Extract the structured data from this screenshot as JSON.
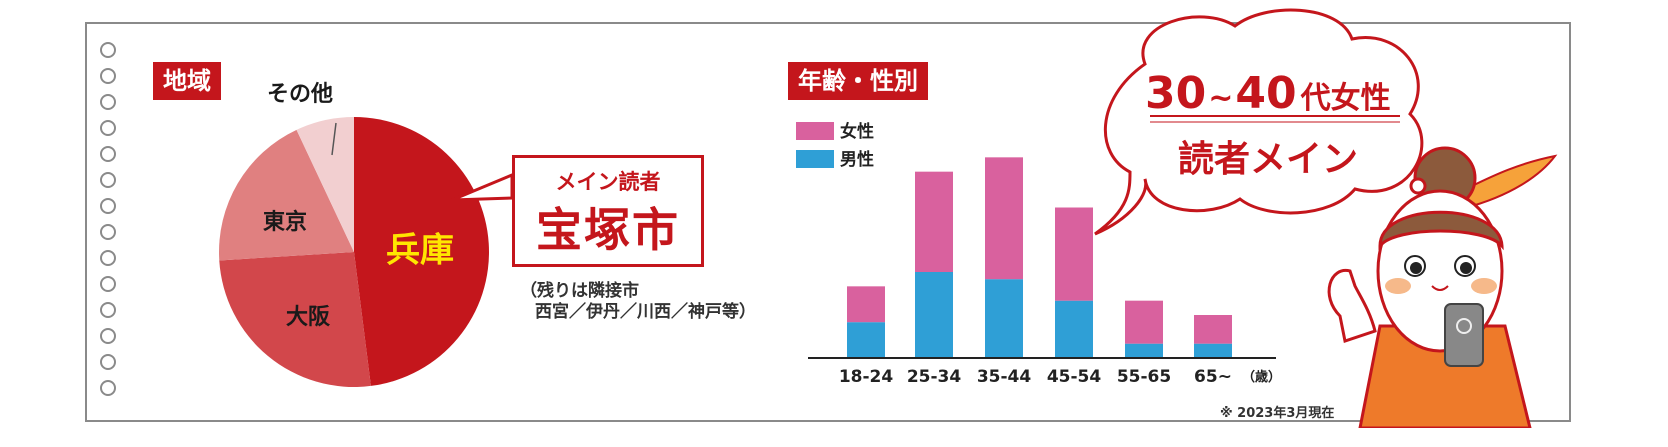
{
  "region": {
    "tag": "地域",
    "callout_sub": "メイン読者",
    "callout_main": "宝塚市",
    "note_line1": "（残りは隣接市",
    "note_line2": "西宮／伊丹／川西／神戸等）"
  },
  "age_gender": {
    "tag": "年齢・性別",
    "axis_unit": "（歳）",
    "footnote": "※ 2023年3月現在"
  },
  "bubble": {
    "line1_num": "30",
    "line1_tilde": "~",
    "line1_num2": "40",
    "line1_rest": "代女性",
    "line2": "読者メイン"
  },
  "chart_data": [
    {
      "type": "pie",
      "categories": [
        "兵庫",
        "大阪",
        "東京",
        "その他"
      ],
      "values": [
        48,
        26,
        19,
        7
      ],
      "colors": [
        "#c4161c",
        "#d2474b",
        "#e08080",
        "#f2cfd0"
      ],
      "label_colors": [
        "#ffe600",
        "#1a1a1a",
        "#1a1a1a",
        "#1a1a1a"
      ]
    },
    {
      "type": "bar",
      "stacked": true,
      "categories": [
        "18-24",
        "25-34",
        "35-44",
        "45-54",
        "55-65",
        "65~"
      ],
      "series": [
        {
          "name": "男性",
          "color": "#2f9fd6",
          "values": [
            10,
            24,
            22,
            16,
            4,
            4
          ]
        },
        {
          "name": "女性",
          "color": "#d9619e",
          "values": [
            10,
            28,
            34,
            26,
            12,
            8
          ]
        }
      ],
      "ylim": [
        0,
        60
      ],
      "grid": false,
      "legend": "top-left"
    }
  ]
}
